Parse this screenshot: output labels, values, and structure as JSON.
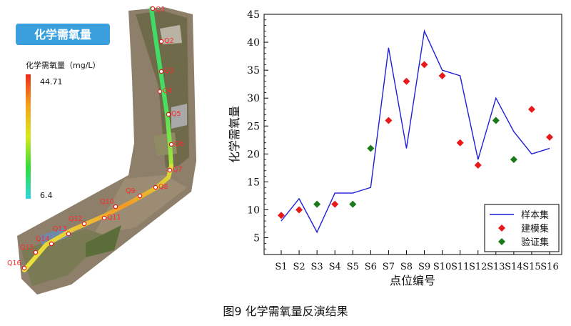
{
  "map": {
    "title": "化学需氧量",
    "legend_title": "化学需氧量（mg/L）",
    "legend_max": "44.71",
    "legend_min": "6.4",
    "points": [
      "Q1",
      "Q2",
      "Q3",
      "Q4",
      "Q5",
      "Q6",
      "Q7",
      "Q8",
      "Q9",
      "Q10",
      "Q11",
      "Q12",
      "Q13",
      "Q14",
      "Q15",
      "Q16"
    ]
  },
  "caption": "图9  化学需氧量反演结果",
  "colors": {
    "badge": "#3aa0dd",
    "sample_line": "#1f1fd6",
    "model_marker": "#e8191a",
    "validation_marker": "#1a7a1a"
  },
  "chart_data": {
    "type": "line",
    "title": "",
    "xlabel": "点位编号",
    "ylabel": "化学需氧量",
    "categories": [
      "S1",
      "S2",
      "S3",
      "S4",
      "S5",
      "S6",
      "S7",
      "S8",
      "S9",
      "S10",
      "S11",
      "S12",
      "S13",
      "S14",
      "S15",
      "S16"
    ],
    "ylim": [
      2,
      45
    ],
    "yticks": [
      5,
      10,
      15,
      20,
      25,
      30,
      35,
      40,
      45
    ],
    "legend_position": "bottom-right",
    "series": [
      {
        "name": "样本集",
        "style": "line",
        "values": [
          8,
          12,
          6,
          13,
          13,
          14,
          39,
          21,
          42,
          35,
          34,
          19,
          30,
          24,
          20,
          21
        ]
      },
      {
        "name": "建模集",
        "style": "diamond",
        "points": [
          [
            1,
            9
          ],
          [
            2,
            10
          ],
          [
            4,
            11
          ],
          [
            7,
            26
          ],
          [
            8,
            33
          ],
          [
            9,
            36
          ],
          [
            10,
            34
          ],
          [
            11,
            22
          ],
          [
            12,
            18
          ],
          [
            15,
            28
          ],
          [
            16,
            23
          ]
        ]
      },
      {
        "name": "验证集",
        "style": "diamond",
        "points": [
          [
            3,
            11
          ],
          [
            5,
            11
          ],
          [
            6,
            21
          ],
          [
            13,
            26
          ],
          [
            14,
            19
          ]
        ]
      }
    ]
  }
}
